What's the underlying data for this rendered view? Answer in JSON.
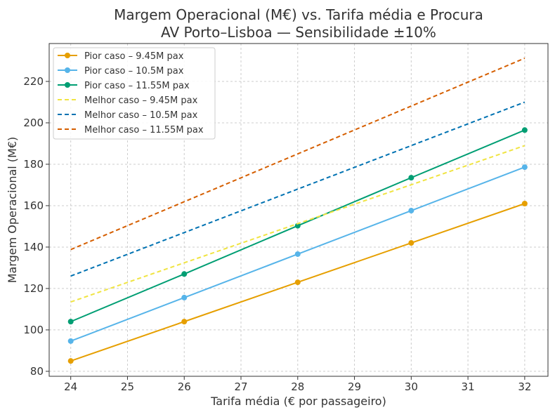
{
  "chart_data": {
    "type": "line",
    "title": "Margem Operacional (M€) vs. Tarifa média e Procura",
    "subtitle": "AV Porto–Lisboa — Sensibilidade ±10%",
    "xlabel": "Tarifa média (€ por passageiro)",
    "ylabel": "Margem Operacional (M€)",
    "xlim": [
      23.62,
      32.41
    ],
    "ylim": [
      77.6,
      238.3
    ],
    "xticks": [
      24,
      25,
      26,
      27,
      28,
      29,
      30,
      31,
      32
    ],
    "yticks": [
      80,
      100,
      120,
      140,
      160,
      180,
      200,
      220
    ],
    "grid": true,
    "legend_position": "top-left",
    "x": [
      24,
      26,
      28,
      30,
      32
    ],
    "series": [
      {
        "name": "Pior caso – 9.45M pax",
        "color": "#E69F00",
        "style": "solid",
        "markers": true,
        "values": [
          85,
          104,
          123,
          142,
          161
        ]
      },
      {
        "name": "Pior caso – 10.5M pax",
        "color": "#56B4E9",
        "style": "solid",
        "markers": true,
        "values": [
          94.6,
          115.6,
          136.6,
          157.6,
          178.6
        ]
      },
      {
        "name": "Pior caso – 11.55M pax",
        "color": "#009E73",
        "style": "solid",
        "markers": true,
        "values": [
          104,
          127,
          150.3,
          173.5,
          196.5
        ]
      },
      {
        "name": "Melhor caso – 9.45M pax",
        "color": "#F0E442",
        "style": "dashed",
        "markers": false,
        "values": [
          113.5,
          132.4,
          151.3,
          170.1,
          189
        ]
      },
      {
        "name": "Melhor caso – 10.5M pax",
        "color": "#0072B2",
        "style": "dashed",
        "markers": false,
        "values": [
          126,
          147,
          168,
          189,
          210
        ]
      },
      {
        "name": "Melhor caso – 11.55M pax",
        "color": "#D55E00",
        "style": "dashed",
        "markers": false,
        "values": [
          138.8,
          161.9,
          185,
          208.1,
          231.2
        ]
      }
    ]
  }
}
